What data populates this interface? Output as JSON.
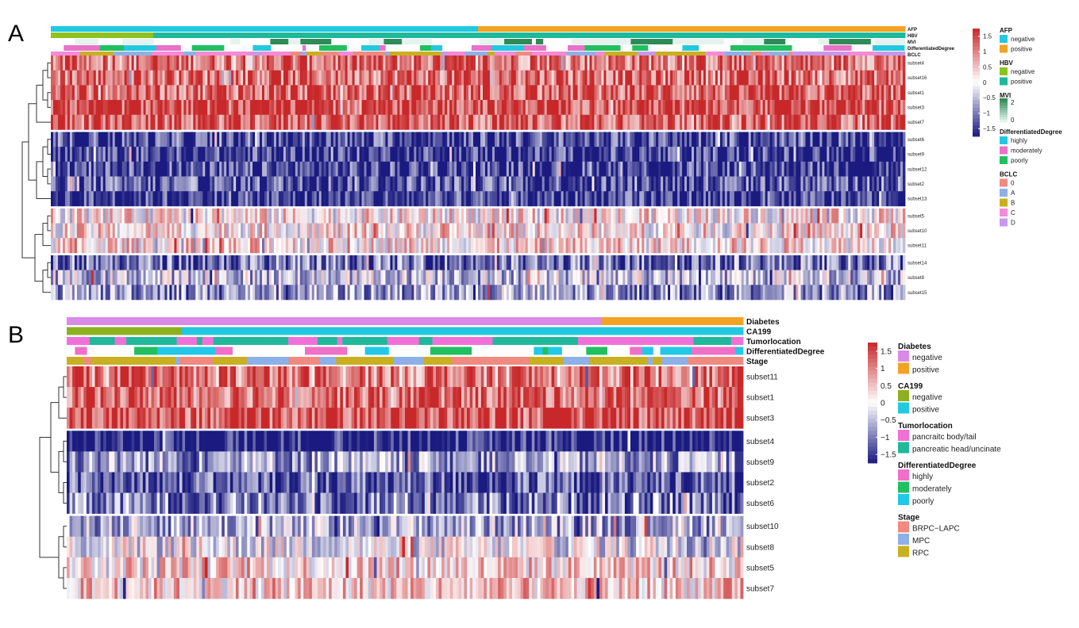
{
  "panels": [
    {
      "label": "A",
      "annotation_tracks": [
        "AFP",
        "HBV",
        "MVI",
        "DifferentiatedDegree",
        "BCLC"
      ],
      "groups": [
        [
          "subset4",
          "subset16",
          "subset1",
          "subset3",
          "subset7"
        ],
        [
          "subset6",
          "subset9",
          "subset12",
          "subset2",
          "subset13"
        ],
        [
          "subset5",
          "subset10",
          "subset11"
        ],
        [
          "subset14",
          "subset8",
          "subset15"
        ]
      ],
      "legend": {
        "scale_ticks": [
          "1.5",
          "1",
          "0.5",
          "0",
          "−0.5",
          "−1",
          "−1.5"
        ],
        "sections": [
          {
            "title": "AFP",
            "items": [
              {
                "label": "negative",
                "color": "#22c8e0"
              },
              {
                "label": "positive",
                "color": "#f2a324"
              }
            ]
          },
          {
            "title": "HBV",
            "items": [
              {
                "label": "negative",
                "color": "#8dc21f"
              },
              {
                "label": "positive",
                "color": "#1fb89a"
              }
            ]
          },
          {
            "title": "MVI",
            "items": [
              {
                "label": "2",
                "color": "#2e8b57"
              },
              {
                "label": "0",
                "color": "#e4f3ee"
              }
            ]
          },
          {
            "title": "DifferentiatedDegree",
            "items": [
              {
                "label": "highly",
                "color": "#22c8e0"
              },
              {
                "label": "moderately",
                "color": "#e872c8"
              },
              {
                "label": "poorly",
                "color": "#20c060"
              }
            ]
          },
          {
            "title": "BCLC",
            "items": [
              {
                "label": "0",
                "color": "#f08a80"
              },
              {
                "label": "A",
                "color": "#8db0e8"
              },
              {
                "label": "B",
                "color": "#c9b020"
              },
              {
                "label": "C",
                "color": "#f48ad8"
              },
              {
                "label": "D",
                "color": "#c898e8"
              }
            ]
          }
        ]
      }
    },
    {
      "label": "B",
      "annotation_tracks": [
        "Diabetes",
        "CA199",
        "Tumorlocation",
        "DifferentiatedDegree",
        "Stage"
      ],
      "groups": [
        [
          "subset11",
          "subset1",
          "subset3"
        ],
        [
          "subset4",
          "subset9",
          "subset2",
          "subset6"
        ],
        [
          "subset10",
          "subset8",
          "subset5",
          "subset7"
        ]
      ],
      "legend": {
        "scale_ticks": [
          "1.5",
          "1",
          "0.5",
          "0",
          "−0.5",
          "−1",
          "−1.5"
        ],
        "sections": [
          {
            "title": "Diabetes",
            "items": [
              {
                "label": "negative",
                "color": "#d98ae8"
              },
              {
                "label": "positive",
                "color": "#f2a324"
              }
            ]
          },
          {
            "title": "CA199",
            "items": [
              {
                "label": "negative",
                "color": "#8db020"
              },
              {
                "label": "positive",
                "color": "#22c8e0"
              }
            ]
          },
          {
            "title": "Tumorlocation",
            "items": [
              {
                "label": "pancraitc body/tail",
                "color": "#f070d8"
              },
              {
                "label": "pancreatic head/uncinate",
                "color": "#1fb89a"
              }
            ]
          },
          {
            "title": "DifferentiatedDegree",
            "items": [
              {
                "label": "highly",
                "color": "#f070c8"
              },
              {
                "label": "moderately",
                "color": "#20c060"
              },
              {
                "label": "poorly",
                "color": "#22c8e8"
              }
            ]
          },
          {
            "title": "Stage",
            "items": [
              {
                "label": "BRPC−LAPC",
                "color": "#f08a80"
              },
              {
                "label": "MPC",
                "color": "#8db0e8"
              },
              {
                "label": "RPC",
                "color": "#c9b020"
              }
            ]
          }
        ]
      }
    }
  ],
  "chart_data": [
    {
      "type": "heatmap",
      "panel": "A",
      "rows": [
        "subset4",
        "subset16",
        "subset1",
        "subset3",
        "subset7",
        "subset6",
        "subset9",
        "subset12",
        "subset2",
        "subset13",
        "subset5",
        "subset10",
        "subset11",
        "subset14",
        "subset8",
        "subset15"
      ],
      "row_mean_z": [
        1.0,
        1.05,
        1.1,
        1.3,
        1.15,
        -1.2,
        -1.3,
        -1.25,
        -1.1,
        -1.3,
        0.15,
        0.2,
        0.25,
        -0.9,
        -0.35,
        -0.6
      ],
      "color_scale": {
        "min": -1.5,
        "max": 1.5,
        "low": "#1a1a80",
        "mid": "#ffffff",
        "high": "#c8282a"
      },
      "annotation_tracks": {
        "AFP": {
          "levels": [
            "negative",
            "positive"
          ],
          "segments": [
            [
              "negative",
              0.5
            ],
            [
              "positive",
              0.5
            ]
          ]
        },
        "HBV": {
          "levels": [
            "negative",
            "positive"
          ],
          "segments": [
            [
              "negative",
              0.12
            ],
            [
              "positive",
              0.88
            ]
          ]
        },
        "MVI": {
          "levels": [
            "0",
            "2"
          ]
        },
        "DifferentiatedDegree": {
          "levels": [
            "highly",
            "moderately",
            "poorly"
          ]
        },
        "BCLC": {
          "levels": [
            "0",
            "A",
            "B",
            "C",
            "D"
          ]
        }
      }
    },
    {
      "type": "heatmap",
      "panel": "B",
      "rows": [
        "subset11",
        "subset1",
        "subset3",
        "subset4",
        "subset9",
        "subset2",
        "subset6",
        "subset10",
        "subset8",
        "subset5",
        "subset7"
      ],
      "row_mean_z": [
        0.9,
        1.1,
        1.25,
        -1.5,
        -0.6,
        -1.1,
        -0.8,
        -0.5,
        -0.1,
        0.3,
        0.35
      ],
      "color_scale": {
        "min": -1.5,
        "max": 1.5,
        "low": "#1a1a80",
        "mid": "#ffffff",
        "high": "#c8282a"
      },
      "annotation_tracks": {
        "Diabetes": {
          "levels": [
            "negative",
            "positive"
          ],
          "segments": [
            [
              "negative",
              0.79
            ],
            [
              "positive",
              0.21
            ]
          ]
        },
        "CA199": {
          "levels": [
            "negative",
            "positive"
          ],
          "segments": [
            [
              "negative",
              0.17
            ],
            [
              "positive",
              0.83
            ]
          ]
        },
        "Tumorlocation": {
          "levels": [
            "pancraitc body/tail",
            "pancreatic head/uncinate"
          ]
        },
        "DifferentiatedDegree": {
          "levels": [
            "highly",
            "moderately",
            "poorly"
          ]
        },
        "Stage": {
          "levels": [
            "BRPC−LAPC",
            "MPC",
            "RPC"
          ]
        }
      }
    }
  ]
}
